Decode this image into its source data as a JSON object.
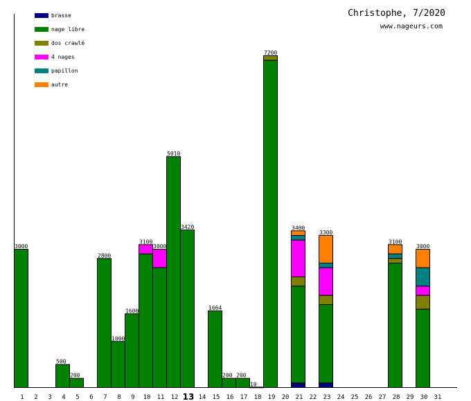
{
  "chart_data": {
    "type": "bar",
    "stacked": true,
    "title": "Christophe, 7/2020",
    "subtitle": "www.nageurs.com",
    "xlabel": "",
    "ylabel": "",
    "ylim": [
      0,
      8100
    ],
    "highlight_day": "13",
    "categories": [
      "1",
      "2",
      "3",
      "4",
      "5",
      "6",
      "7",
      "8",
      "9",
      "10",
      "11",
      "12",
      "13",
      "14",
      "15",
      "16",
      "17",
      "18",
      "19",
      "20",
      "21",
      "22",
      "23",
      "24",
      "25",
      "26",
      "27",
      "28",
      "29",
      "30",
      "31"
    ],
    "series": [
      {
        "name": "brasse",
        "color": "#000080",
        "values": [
          0,
          0,
          0,
          0,
          0,
          0,
          0,
          0,
          0,
          0,
          0,
          0,
          0,
          0,
          0,
          0,
          0,
          0,
          0,
          0,
          100,
          0,
          100,
          0,
          0,
          0,
          0,
          0,
          0,
          0,
          0
        ]
      },
      {
        "name": "nage libre",
        "color": "#008000",
        "values": [
          3000,
          0,
          0,
          500,
          200,
          0,
          2800,
          1000,
          1600,
          2900,
          2600,
          5010,
          3420,
          0,
          1664,
          200,
          200,
          10,
          7100,
          0,
          2100,
          0,
          1700,
          0,
          0,
          0,
          0,
          2700,
          0,
          1700,
          0
        ]
      },
      {
        "name": "dos crawlé",
        "color": "#808000",
        "values": [
          0,
          0,
          0,
          0,
          0,
          0,
          0,
          0,
          0,
          0,
          0,
          0,
          0,
          0,
          0,
          0,
          0,
          0,
          100,
          0,
          200,
          0,
          200,
          0,
          0,
          0,
          0,
          100,
          0,
          300,
          0
        ]
      },
      {
        "name": "4 nages",
        "color": "#ff00ff",
        "values": [
          0,
          0,
          0,
          0,
          0,
          0,
          0,
          0,
          0,
          200,
          400,
          0,
          0,
          0,
          0,
          0,
          0,
          0,
          0,
          0,
          800,
          0,
          600,
          0,
          0,
          0,
          0,
          0,
          0,
          200,
          0
        ]
      },
      {
        "name": "papillon",
        "color": "#008080",
        "values": [
          0,
          0,
          0,
          0,
          0,
          0,
          0,
          0,
          0,
          0,
          0,
          0,
          0,
          0,
          0,
          0,
          0,
          0,
          0,
          0,
          100,
          0,
          100,
          0,
          0,
          0,
          0,
          100,
          0,
          400,
          0
        ]
      },
      {
        "name": "autre",
        "color": "#ff8000",
        "values": [
          0,
          0,
          0,
          0,
          0,
          0,
          0,
          0,
          0,
          0,
          0,
          0,
          0,
          0,
          0,
          0,
          0,
          0,
          0,
          0,
          100,
          0,
          600,
          0,
          0,
          0,
          0,
          200,
          0,
          400,
          0
        ]
      }
    ],
    "totals": [
      "3000",
      "",
      "",
      "500",
      "200",
      "",
      "2800",
      "1000",
      "1600",
      "3100",
      "3000",
      "5010",
      "3420",
      "",
      "1664",
      "200",
      "200",
      "10",
      "7200",
      "",
      "3400",
      "",
      "3300",
      "",
      "",
      "",
      "",
      "3100",
      "",
      "3000",
      ""
    ],
    "legend_position": "top-left",
    "grid": false
  }
}
